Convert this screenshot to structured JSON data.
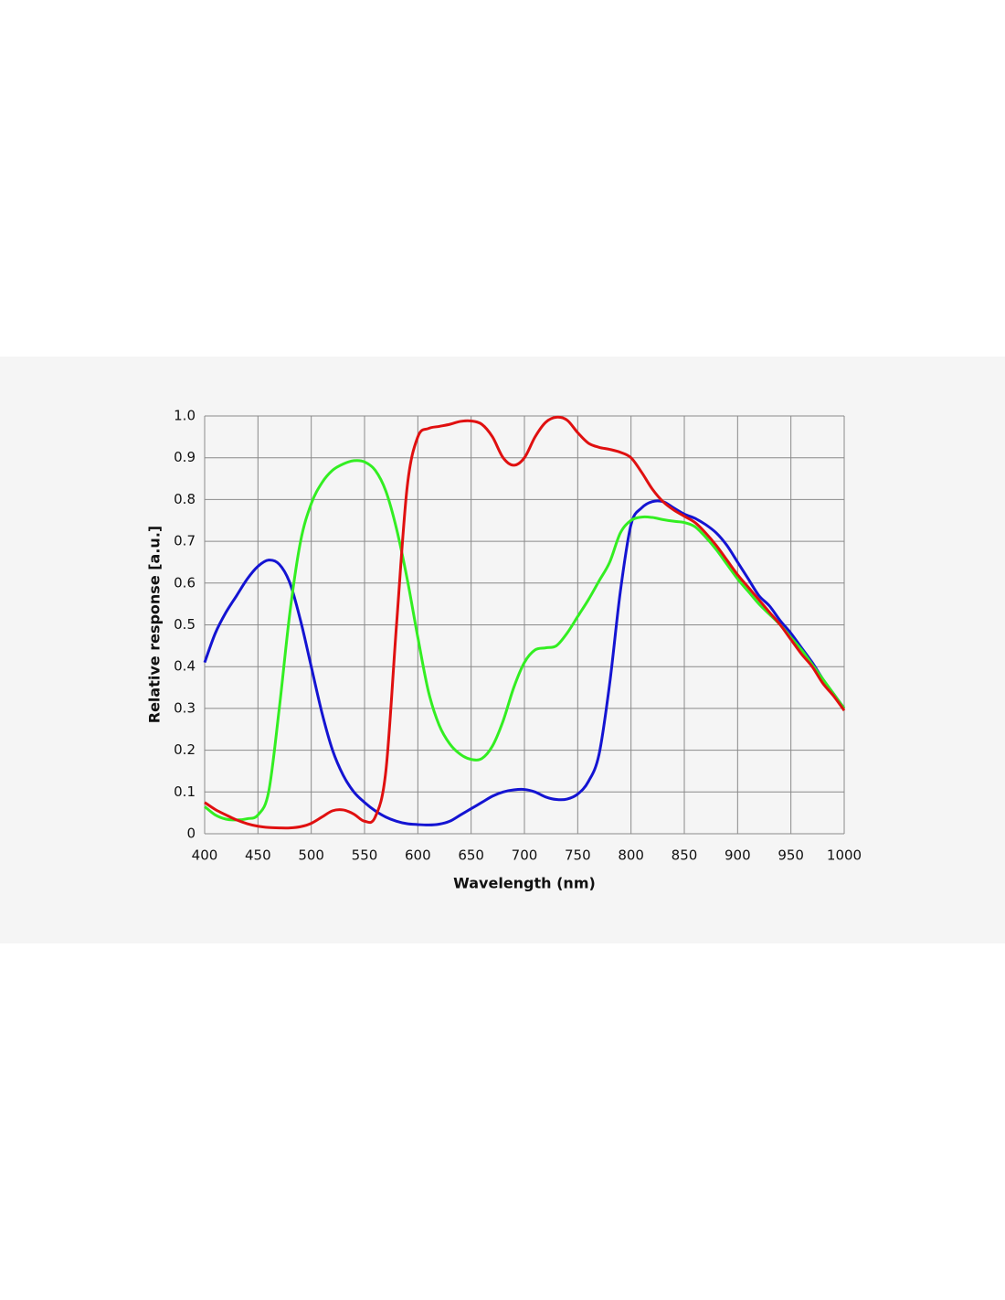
{
  "chart_data": {
    "type": "line",
    "xlabel": "Wavelength (nm)",
    "ylabel": "Relative response [a.u.]",
    "x": [
      400,
      410,
      420,
      430,
      440,
      450,
      460,
      470,
      480,
      490,
      500,
      510,
      520,
      530,
      540,
      550,
      560,
      570,
      580,
      590,
      600,
      610,
      620,
      630,
      640,
      650,
      660,
      670,
      680,
      690,
      700,
      710,
      720,
      730,
      740,
      750,
      760,
      770,
      780,
      790,
      800,
      810,
      820,
      830,
      840,
      850,
      860,
      870,
      880,
      890,
      900,
      910,
      920,
      930,
      940,
      950,
      960,
      970,
      980,
      990,
      1000
    ],
    "series": [
      {
        "color": "#1414d2",
        "values": [
          0.41,
          0.48,
          0.53,
          0.57,
          0.61,
          0.64,
          0.655,
          0.645,
          0.6,
          0.51,
          0.4,
          0.29,
          0.2,
          0.14,
          0.1,
          0.075,
          0.055,
          0.04,
          0.03,
          0.024,
          0.022,
          0.021,
          0.023,
          0.03,
          0.045,
          0.06,
          0.075,
          0.09,
          0.1,
          0.105,
          0.106,
          0.1,
          0.088,
          0.082,
          0.083,
          0.095,
          0.125,
          0.19,
          0.36,
          0.58,
          0.74,
          0.78,
          0.795,
          0.795,
          0.78,
          0.765,
          0.755,
          0.74,
          0.72,
          0.69,
          0.65,
          0.61,
          0.57,
          0.545,
          0.51,
          0.48,
          0.445,
          0.41,
          0.37,
          0.335,
          0.3
        ]
      },
      {
        "color": "#33ee22",
        "values": [
          0.065,
          0.045,
          0.035,
          0.033,
          0.036,
          0.045,
          0.1,
          0.3,
          0.53,
          0.7,
          0.79,
          0.84,
          0.87,
          0.885,
          0.893,
          0.89,
          0.87,
          0.82,
          0.73,
          0.61,
          0.47,
          0.34,
          0.26,
          0.215,
          0.19,
          0.178,
          0.18,
          0.21,
          0.27,
          0.35,
          0.41,
          0.44,
          0.445,
          0.45,
          0.48,
          0.52,
          0.56,
          0.605,
          0.65,
          0.72,
          0.75,
          0.758,
          0.757,
          0.752,
          0.748,
          0.745,
          0.735,
          0.71,
          0.68,
          0.645,
          0.61,
          0.58,
          0.55,
          0.525,
          0.5,
          0.47,
          0.44,
          0.405,
          0.37,
          0.335,
          0.3
        ]
      },
      {
        "color": "#e01010",
        "values": [
          0.075,
          0.058,
          0.045,
          0.033,
          0.024,
          0.018,
          0.015,
          0.014,
          0.014,
          0.017,
          0.025,
          0.04,
          0.055,
          0.057,
          0.047,
          0.03,
          0.04,
          0.15,
          0.5,
          0.83,
          0.95,
          0.97,
          0.975,
          0.98,
          0.987,
          0.988,
          0.98,
          0.95,
          0.9,
          0.882,
          0.9,
          0.95,
          0.985,
          0.997,
          0.99,
          0.96,
          0.935,
          0.925,
          0.92,
          0.913,
          0.9,
          0.865,
          0.825,
          0.795,
          0.775,
          0.76,
          0.745,
          0.72,
          0.69,
          0.655,
          0.62,
          0.59,
          0.56,
          0.53,
          0.5,
          0.465,
          0.43,
          0.4,
          0.36,
          0.33,
          0.295
        ]
      }
    ],
    "xlim": [
      400,
      1000
    ],
    "xticks": [
      400,
      450,
      500,
      550,
      600,
      650,
      700,
      750,
      800,
      850,
      900,
      950,
      1000
    ],
    "ylim": [
      0,
      1
    ],
    "yticks": [
      0,
      0.1,
      0.2,
      0.3,
      0.4,
      0.5,
      0.6,
      0.7,
      0.8,
      0.9,
      {
        "value": 1,
        "label": "1.0"
      }
    ],
    "grid": true
  }
}
